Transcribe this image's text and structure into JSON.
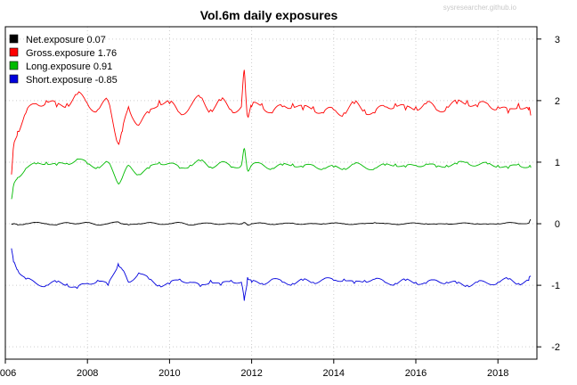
{
  "watermark": "sysresearcher.github.io",
  "chart_data": {
    "type": "line",
    "title": "Vol.6m daily exposures",
    "xlabel": "",
    "ylabel": "",
    "xlim": [
      2006.0,
      2018.95
    ],
    "ylim": [
      -2.2,
      3.2
    ],
    "x_ticks": [
      {
        "value": 2006,
        "label": "2006"
      },
      {
        "value": 2008,
        "label": "2008"
      },
      {
        "value": 2010,
        "label": "2010"
      },
      {
        "value": 2012,
        "label": "2012"
      },
      {
        "value": 2014,
        "label": "2014"
      },
      {
        "value": 2016,
        "label": "2016"
      },
      {
        "value": 2018,
        "label": "2018"
      }
    ],
    "y_ticks": [
      {
        "value": 3,
        "label": "3"
      },
      {
        "value": 2,
        "label": "2"
      },
      {
        "value": 1,
        "label": "1"
      },
      {
        "value": 0,
        "label": "0"
      },
      {
        "value": -1,
        "label": "-1"
      },
      {
        "value": -2,
        "label": "-2"
      }
    ],
    "y_axis_side": "right",
    "grid": true,
    "grid_style": "dotted",
    "legend_position": "top-left",
    "x": [
      2006.15,
      2006.2,
      2006.3,
      2006.5,
      2006.75,
      2007.0,
      2007.25,
      2007.5,
      2007.75,
      2008.0,
      2008.25,
      2008.5,
      2008.75,
      2008.85,
      2009.0,
      2009.25,
      2009.5,
      2009.75,
      2010.0,
      2010.25,
      2010.5,
      2010.75,
      2011.0,
      2011.25,
      2011.5,
      2011.75,
      2011.82,
      2011.9,
      2012.0,
      2012.25,
      2012.5,
      2012.75,
      2013.0,
      2013.25,
      2013.5,
      2013.75,
      2014.0,
      2014.25,
      2014.5,
      2014.75,
      2015.0,
      2015.25,
      2015.5,
      2015.75,
      2016.0,
      2016.25,
      2016.5,
      2016.75,
      2017.0,
      2017.25,
      2017.5,
      2017.75,
      2018.0,
      2018.25,
      2018.5,
      2018.75,
      2018.8
    ],
    "series": [
      {
        "name": "Net.exposure",
        "label": "Net.exposure  0.07",
        "color": "#000000",
        "values": [
          0.0,
          0.0,
          -0.02,
          0.0,
          0.02,
          0.0,
          -0.02,
          0.02,
          0.0,
          0.02,
          -0.02,
          0.0,
          0.03,
          0.0,
          -0.02,
          0.0,
          0.02,
          -0.01,
          0.0,
          0.02,
          -0.02,
          0.0,
          0.01,
          -0.01,
          0.0,
          0.0,
          0.02,
          -0.02,
          0.0,
          0.01,
          -0.01,
          0.0,
          0.01,
          -0.01,
          0.0,
          0.0,
          0.01,
          0.0,
          -0.01,
          0.0,
          0.02,
          0.0,
          -0.01,
          0.0,
          0.01,
          0.0,
          -0.01,
          0.0,
          0.0,
          0.01,
          0.0,
          -0.01,
          0.0,
          0.02,
          0.0,
          0.01,
          0.07
        ]
      },
      {
        "name": "Gross.exposure",
        "label": "Gross.exposure  1.76",
        "color": "#ff0000",
        "values": [
          0.8,
          1.25,
          1.5,
          1.8,
          1.95,
          2.0,
          1.9,
          1.95,
          2.1,
          1.95,
          1.85,
          2.0,
          1.3,
          1.5,
          1.9,
          1.6,
          1.8,
          2.0,
          1.95,
          1.8,
          1.9,
          2.05,
          1.85,
          2.0,
          1.85,
          1.9,
          2.5,
          1.75,
          1.9,
          1.95,
          1.8,
          1.9,
          1.95,
          1.85,
          1.9,
          1.8,
          1.85,
          1.8,
          1.95,
          1.85,
          1.8,
          1.9,
          1.95,
          1.85,
          1.9,
          1.95,
          1.85,
          1.9,
          1.95,
          2.0,
          1.9,
          1.95,
          1.9,
          1.8,
          1.95,
          1.85,
          1.76
        ]
      },
      {
        "name": "Long.exposure",
        "label": "Long.exposure  0.91",
        "color": "#00bb00",
        "values": [
          0.4,
          0.62,
          0.75,
          0.9,
          0.97,
          1.0,
          0.95,
          0.98,
          1.05,
          0.97,
          0.92,
          1.0,
          0.65,
          0.75,
          0.95,
          0.8,
          0.9,
          1.0,
          0.98,
          0.9,
          0.95,
          1.02,
          0.92,
          1.0,
          0.92,
          0.95,
          1.22,
          0.87,
          0.95,
          0.97,
          0.9,
          0.95,
          0.97,
          0.92,
          0.95,
          0.9,
          0.92,
          0.9,
          0.97,
          0.92,
          0.9,
          0.95,
          0.97,
          0.92,
          0.95,
          0.97,
          0.92,
          0.95,
          0.97,
          1.0,
          0.95,
          0.97,
          0.95,
          0.9,
          0.97,
          0.92,
          0.91
        ]
      },
      {
        "name": "Short.exposure",
        "label": "Short.exposure -0.85",
        "color": "#0000dd",
        "values": [
          -0.4,
          -0.62,
          -0.75,
          -0.9,
          -0.97,
          -1.0,
          -0.95,
          -0.98,
          -1.05,
          -0.97,
          -0.92,
          -1.0,
          -0.65,
          -0.75,
          -0.95,
          -0.8,
          -0.9,
          -1.0,
          -0.98,
          -0.9,
          -0.95,
          -1.02,
          -0.92,
          -1.0,
          -0.92,
          -0.95,
          -1.25,
          -0.87,
          -0.95,
          -0.97,
          -0.9,
          -0.95,
          -0.97,
          -0.92,
          -0.95,
          -0.9,
          -0.92,
          -0.9,
          -0.97,
          -0.92,
          -0.9,
          -0.95,
          -0.97,
          -0.92,
          -0.95,
          -0.97,
          -0.92,
          -0.95,
          -0.97,
          -1.0,
          -0.95,
          -0.97,
          -0.95,
          -0.9,
          -0.97,
          -0.92,
          -0.85
        ]
      }
    ]
  }
}
